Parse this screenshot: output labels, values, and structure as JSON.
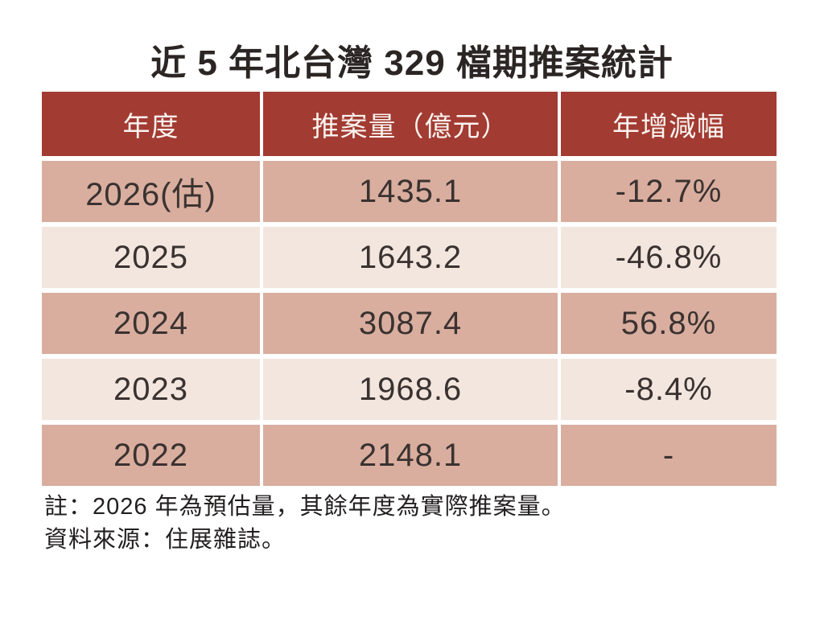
{
  "title": "近 5 年北台灣 329 檔期推案統計",
  "table": {
    "headers": [
      "年度",
      "推案量（億元）",
      "年增減幅"
    ],
    "rows": [
      {
        "year": "2026(估)",
        "volume": "1435.1",
        "change": "-12.7%"
      },
      {
        "year": "2025",
        "volume": "1643.2",
        "change": "-46.8%"
      },
      {
        "year": "2024",
        "volume": "3087.4",
        "change": "56.8%"
      },
      {
        "year": "2023",
        "volume": "1968.6",
        "change": "-8.4%"
      },
      {
        "year": "2022",
        "volume": "2148.1",
        "change": "-"
      }
    ]
  },
  "notes": [
    "註：2026 年為預估量，其餘年度為實際推案量。",
    "資料來源：住展雜誌。"
  ],
  "colors": {
    "header_bg": "#a23b32",
    "header_text": "#faf3ef",
    "row_dark_bg": "#d9ae9f",
    "row_light_bg": "#f2e6de",
    "cell_text": "#3a3230",
    "title_text": "#2b2523",
    "note_text": "#232020",
    "page_bg": "#ffffff"
  },
  "chart_data": {
    "type": "table",
    "title": "近 5 年北台灣 329 檔期推案統計",
    "columns": [
      "年度",
      "推案量（億元）",
      "年增減幅"
    ],
    "rows": [
      [
        "2026(估)",
        1435.1,
        "-12.7%"
      ],
      [
        "2025",
        1643.2,
        "-46.8%"
      ],
      [
        "2024",
        3087.4,
        "56.8%"
      ],
      [
        "2023",
        1968.6,
        "-8.4%"
      ],
      [
        "2022",
        2148.1,
        "-"
      ]
    ],
    "notes": [
      "註：2026 年為預估量，其餘年度為實際推案量。",
      "資料來源：住展雜誌。"
    ],
    "layout": {
      "header_style": "brick-red band, cream text",
      "row_striping": "odd rows tan (#d9ae9f), even rows cream (#f2e6de)",
      "separators": "white 4-6px gaps between all cells"
    }
  }
}
